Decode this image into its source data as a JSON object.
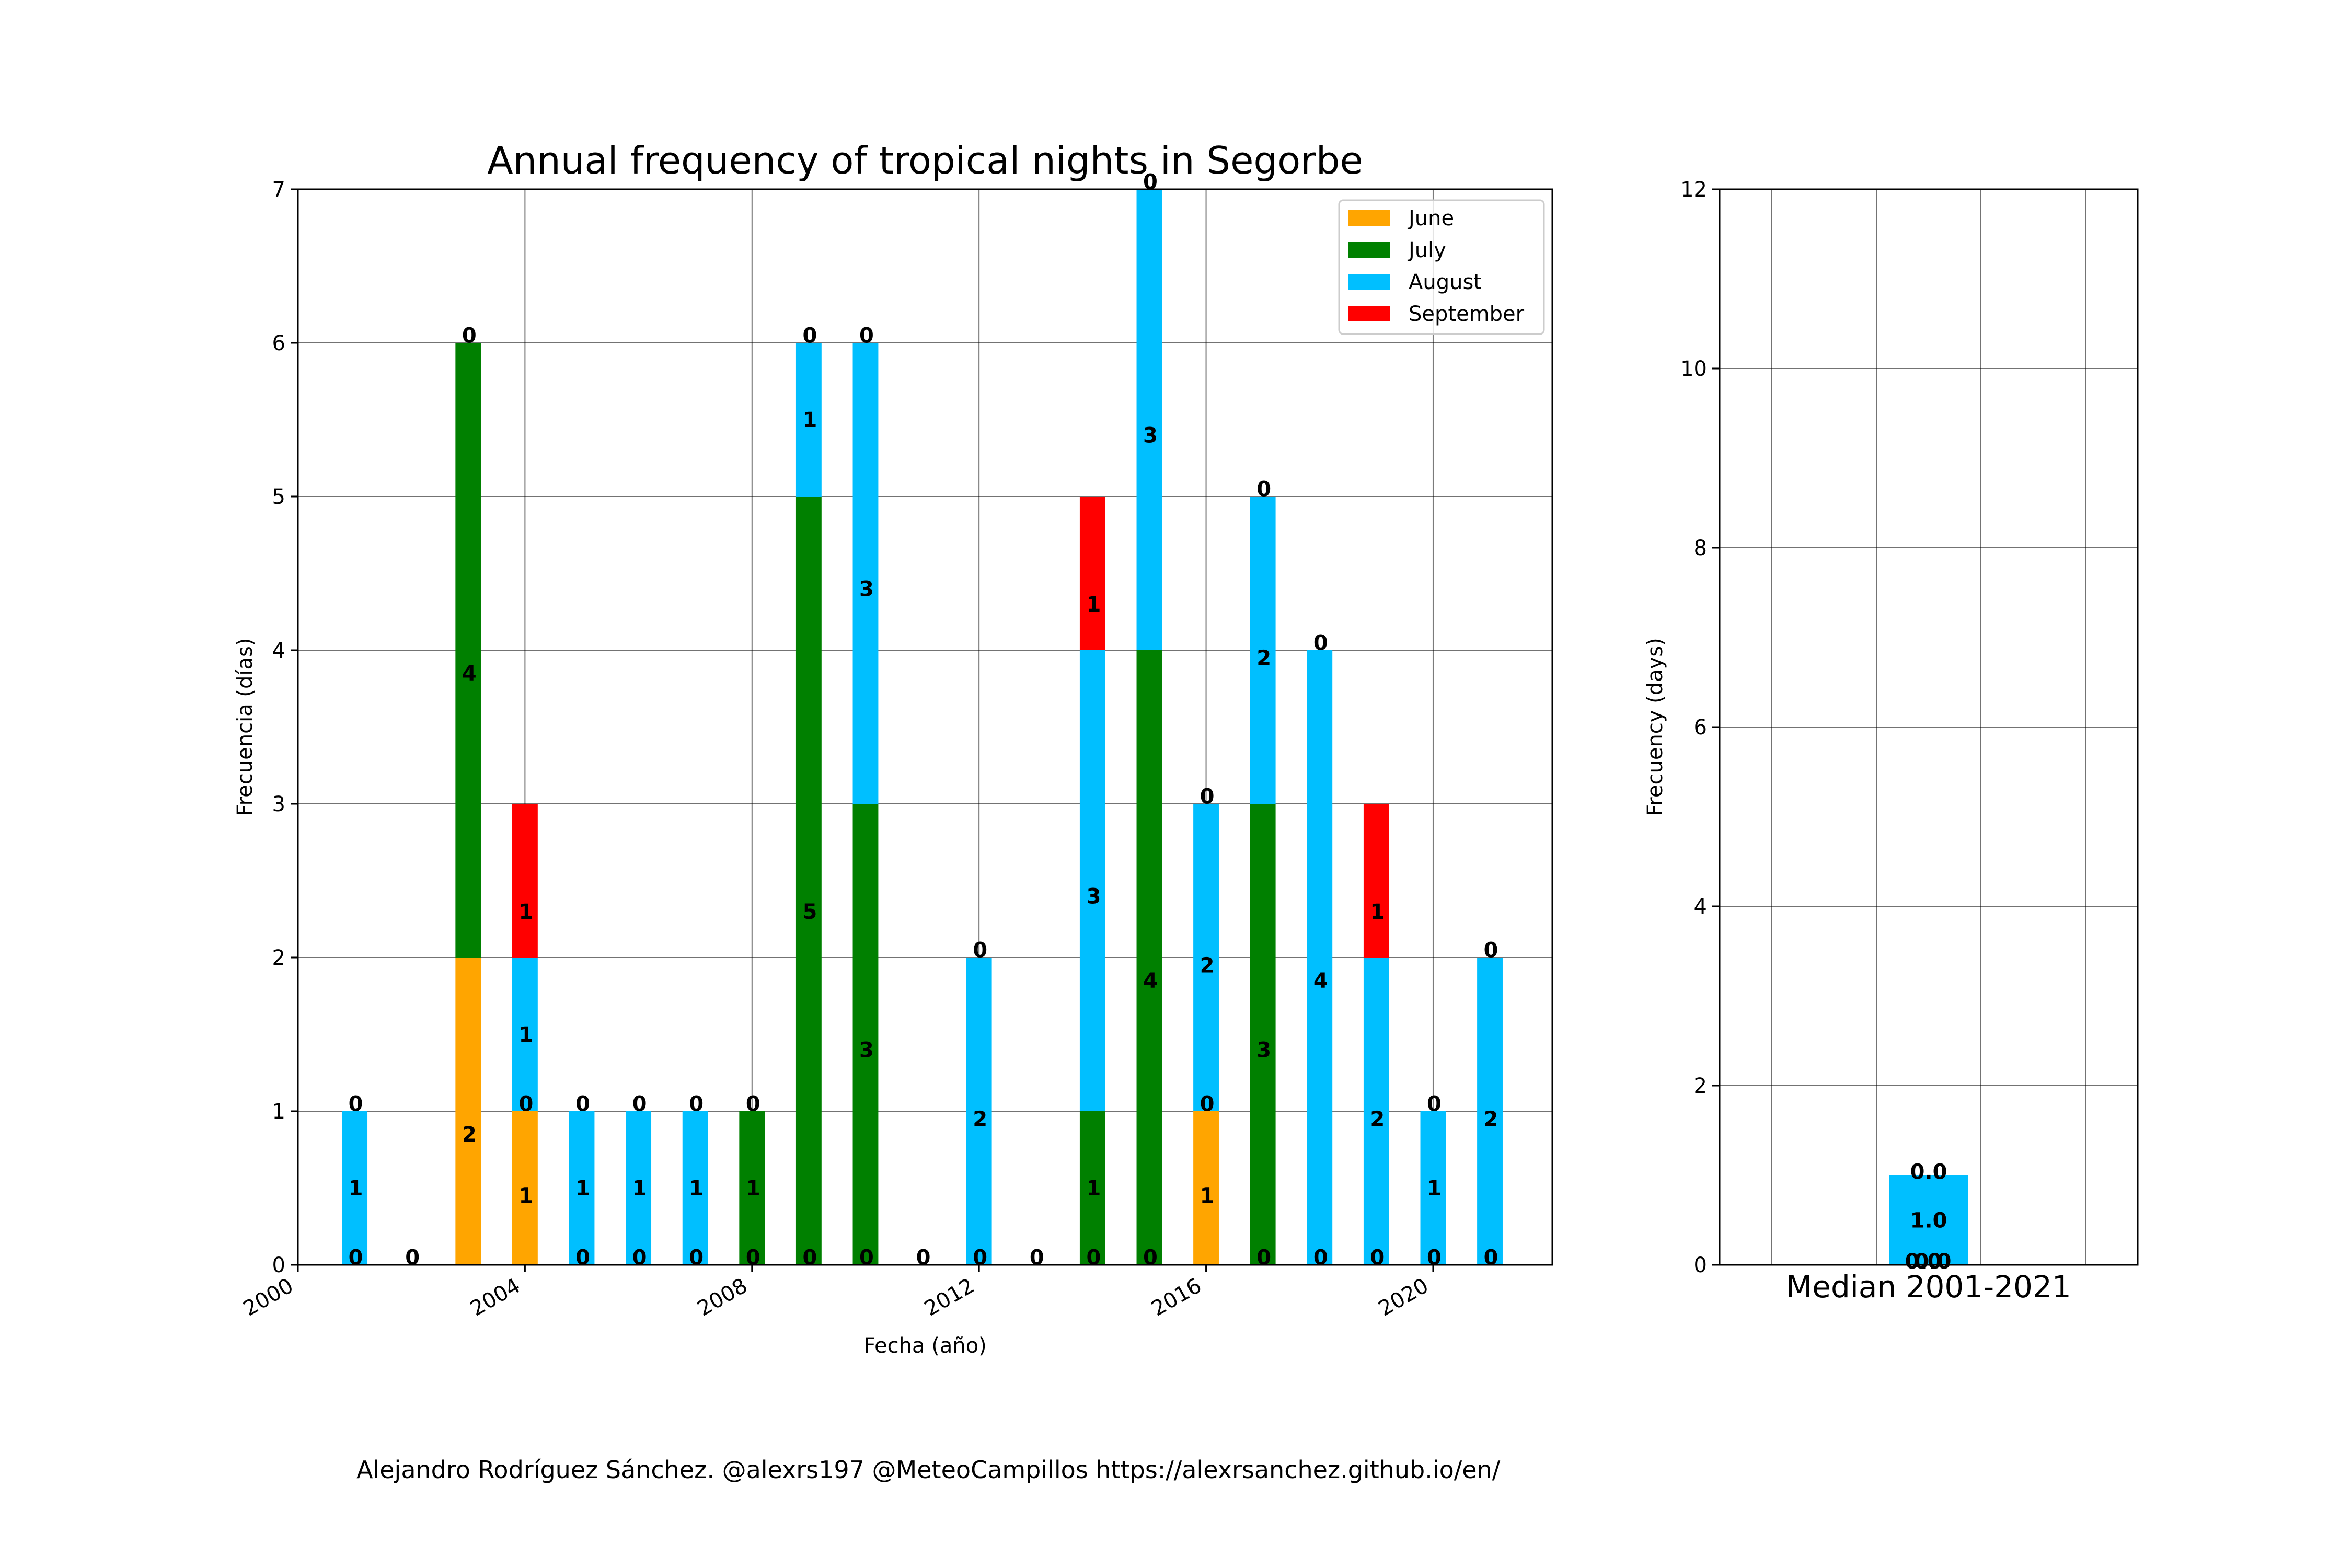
{
  "chart_data": [
    {
      "type": "bar",
      "stacked": true,
      "title": "Annual frequency of tropical nights in Segorbe",
      "xlabel": "Fecha (año)",
      "ylabel": "Frecuencia (días)",
      "x": [
        2001,
        2002,
        2003,
        2004,
        2005,
        2006,
        2007,
        2008,
        2009,
        2010,
        2011,
        2012,
        2013,
        2014,
        2015,
        2016,
        2017,
        2018,
        2019,
        2020,
        2021
      ],
      "xticks": [
        "2000",
        "2004",
        "2008",
        "2012",
        "2016",
        "2020"
      ],
      "xlim": [
        2000,
        2022.1
      ],
      "ylim": [
        0,
        7
      ],
      "yticks": [
        "0",
        "1",
        "2",
        "3",
        "4",
        "5",
        "6",
        "7"
      ],
      "grid": true,
      "legend_position": "top-right",
      "series": [
        {
          "name": "June",
          "color": "#ffa500",
          "values": [
            0,
            0,
            2,
            1,
            0,
            0,
            0,
            0,
            0,
            0,
            0,
            0,
            0,
            0,
            0,
            1,
            0,
            0,
            0,
            0,
            0
          ]
        },
        {
          "name": "July",
          "color": "#008000",
          "values": [
            0,
            0,
            4,
            0,
            0,
            0,
            0,
            1,
            5,
            3,
            0,
            0,
            0,
            1,
            4,
            0,
            3,
            0,
            0,
            0,
            0
          ]
        },
        {
          "name": "August",
          "color": "#00bfff",
          "values": [
            1,
            0,
            0,
            1,
            1,
            1,
            1,
            0,
            1,
            3,
            0,
            2,
            0,
            3,
            3,
            2,
            2,
            4,
            2,
            1,
            2
          ]
        },
        {
          "name": "September",
          "color": "#ff0000",
          "values": [
            0,
            0,
            0,
            1,
            0,
            0,
            0,
            0,
            0,
            0,
            0,
            0,
            0,
            1,
            0,
            0,
            0,
            0,
            1,
            0,
            0
          ]
        }
      ],
      "bar_labels": [
        {
          "x": 2001,
          "y": 0.05,
          "text": "0"
        },
        {
          "x": 2001,
          "y": 0.5,
          "text": "1"
        },
        {
          "x": 2001,
          "y": 1.05,
          "text": "0"
        },
        {
          "x": 2002,
          "y": 0.05,
          "text": "0"
        },
        {
          "x": 2003,
          "y": 0.85,
          "text": "2"
        },
        {
          "x": 2003,
          "y": 3.85,
          "text": "4"
        },
        {
          "x": 2003,
          "y": 6.05,
          "text": "0"
        },
        {
          "x": 2004,
          "y": 0.45,
          "text": "1"
        },
        {
          "x": 2004,
          "y": 1.05,
          "text": "0"
        },
        {
          "x": 2004,
          "y": 1.5,
          "text": "1"
        },
        {
          "x": 2004,
          "y": 2.3,
          "text": "1"
        },
        {
          "x": 2005,
          "y": 0.05,
          "text": "0"
        },
        {
          "x": 2005,
          "y": 0.5,
          "text": "1"
        },
        {
          "x": 2005,
          "y": 1.05,
          "text": "0"
        },
        {
          "x": 2006,
          "y": 0.05,
          "text": "0"
        },
        {
          "x": 2006,
          "y": 0.5,
          "text": "1"
        },
        {
          "x": 2006,
          "y": 1.05,
          "text": "0"
        },
        {
          "x": 2007,
          "y": 0.05,
          "text": "0"
        },
        {
          "x": 2007,
          "y": 0.5,
          "text": "1"
        },
        {
          "x": 2007,
          "y": 1.05,
          "text": "0"
        },
        {
          "x": 2008,
          "y": 0.05,
          "text": "0"
        },
        {
          "x": 2008,
          "y": 0.5,
          "text": "1"
        },
        {
          "x": 2008,
          "y": 1.05,
          "text": "0"
        },
        {
          "x": 2009,
          "y": 0.05,
          "text": "0"
        },
        {
          "x": 2009,
          "y": 2.3,
          "text": "5"
        },
        {
          "x": 2009,
          "y": 5.5,
          "text": "1"
        },
        {
          "x": 2009,
          "y": 6.05,
          "text": "0"
        },
        {
          "x": 2010,
          "y": 0.05,
          "text": "0"
        },
        {
          "x": 2010,
          "y": 1.4,
          "text": "3"
        },
        {
          "x": 2010,
          "y": 4.4,
          "text": "3"
        },
        {
          "x": 2010,
          "y": 6.05,
          "text": "0"
        },
        {
          "x": 2011,
          "y": 0.05,
          "text": "0"
        },
        {
          "x": 2012,
          "y": 0.05,
          "text": "0"
        },
        {
          "x": 2012,
          "y": 0.95,
          "text": "2"
        },
        {
          "x": 2012,
          "y": 2.05,
          "text": "0"
        },
        {
          "x": 2013,
          "y": 0.05,
          "text": "0"
        },
        {
          "x": 2014,
          "y": 0.05,
          "text": "0"
        },
        {
          "x": 2014,
          "y": 0.5,
          "text": "1"
        },
        {
          "x": 2014,
          "y": 2.4,
          "text": "3"
        },
        {
          "x": 2014,
          "y": 4.3,
          "text": "1"
        },
        {
          "x": 2015,
          "y": 0.05,
          "text": "0"
        },
        {
          "x": 2015,
          "y": 1.85,
          "text": "4"
        },
        {
          "x": 2015,
          "y": 5.4,
          "text": "3"
        },
        {
          "x": 2015,
          "y": 7.05,
          "text": "0"
        },
        {
          "x": 2016,
          "y": 0.45,
          "text": "1"
        },
        {
          "x": 2016,
          "y": 1.05,
          "text": "0"
        },
        {
          "x": 2016,
          "y": 1.95,
          "text": "2"
        },
        {
          "x": 2016,
          "y": 3.05,
          "text": "0"
        },
        {
          "x": 2017,
          "y": 0.05,
          "text": "0"
        },
        {
          "x": 2017,
          "y": 1.4,
          "text": "3"
        },
        {
          "x": 2017,
          "y": 3.95,
          "text": "2"
        },
        {
          "x": 2017,
          "y": 5.05,
          "text": "0"
        },
        {
          "x": 2018,
          "y": 0.05,
          "text": "0"
        },
        {
          "x": 2018,
          "y": 1.85,
          "text": "4"
        },
        {
          "x": 2018,
          "y": 4.05,
          "text": "0"
        },
        {
          "x": 2019,
          "y": 0.05,
          "text": "0"
        },
        {
          "x": 2019,
          "y": 0.95,
          "text": "2"
        },
        {
          "x": 2019,
          "y": 2.3,
          "text": "1"
        },
        {
          "x": 2020,
          "y": 0.05,
          "text": "0"
        },
        {
          "x": 2020,
          "y": 0.5,
          "text": "1"
        },
        {
          "x": 2020,
          "y": 1.05,
          "text": "0"
        },
        {
          "x": 2021,
          "y": 0.05,
          "text": "0"
        },
        {
          "x": 2021,
          "y": 0.95,
          "text": "2"
        },
        {
          "x": 2021,
          "y": 2.05,
          "text": "0"
        }
      ]
    },
    {
      "type": "bar",
      "stacked": true,
      "xlabel": "Median 2001-2021",
      "ylabel": "Frecuency (days)",
      "ylim": [
        0,
        12
      ],
      "yticks": [
        "0",
        "2",
        "4",
        "6",
        "8",
        "10",
        "12"
      ],
      "grid": true,
      "series": [
        {
          "name": "June",
          "color": "#ffa500",
          "values": [
            0.0
          ]
        },
        {
          "name": "July",
          "color": "#008000",
          "values": [
            0.0
          ]
        },
        {
          "name": "August",
          "color": "#00bfff",
          "values": [
            1.0
          ]
        },
        {
          "name": "September",
          "color": "#ff0000",
          "values": [
            0.0
          ]
        }
      ],
      "bar_labels": [
        "0.0",
        "0.0",
        "1.0",
        "0.0"
      ]
    }
  ],
  "credit": "Alejandro Rodríguez Sánchez. @alexrs197 @MeteoCampillos   https://alexrsanchez.github.io/en/"
}
